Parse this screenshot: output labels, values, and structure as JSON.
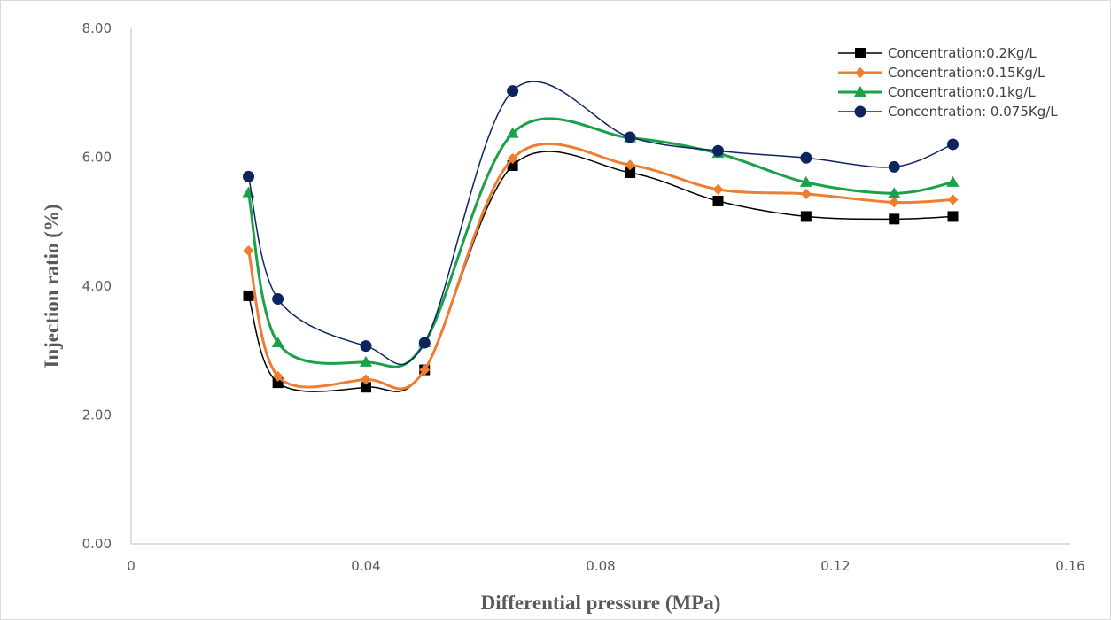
{
  "chart_data": {
    "type": "line",
    "title": "",
    "xlabel": "Differential pressure (MPa)",
    "ylabel": "Injection ratio (%)",
    "xlim": [
      0,
      0.16
    ],
    "ylim": [
      0,
      8
    ],
    "x_ticks": [
      "0",
      "0.04",
      "0.08",
      "0.12",
      "0.16"
    ],
    "y_ticks": [
      "0.00",
      "2.00",
      "4.00",
      "6.00",
      "8.00"
    ],
    "grid": false,
    "legend_position": "top-right",
    "x": [
      0.02,
      0.025,
      0.04,
      0.05,
      0.065,
      0.085,
      0.1,
      0.115,
      0.13,
      0.14
    ],
    "series": [
      {
        "name": "Concentration:0.2Kg/L",
        "color": "#000000",
        "marker": "square",
        "values": [
          3.85,
          2.5,
          2.43,
          2.7,
          5.87,
          5.76,
          5.32,
          5.08,
          5.04,
          5.08
        ]
      },
      {
        "name": "Concentration:0.15Kg/L",
        "color": "#ed7d31",
        "marker": "diamond",
        "values": [
          4.55,
          2.6,
          2.55,
          2.7,
          5.98,
          5.88,
          5.5,
          5.43,
          5.3,
          5.34
        ]
      },
      {
        "name": "Concentration:0.1kg/L",
        "color": "#1aa14a",
        "marker": "triangle",
        "values": [
          5.45,
          3.12,
          2.82,
          3.12,
          6.37,
          6.3,
          6.06,
          5.61,
          5.44,
          5.61
        ]
      },
      {
        "name": "Concentration: 0.075Kg/L",
        "color": "#0d2461",
        "marker": "circle",
        "values": [
          5.7,
          3.8,
          3.07,
          3.12,
          7.03,
          6.31,
          6.1,
          5.99,
          5.85,
          6.2
        ]
      }
    ]
  }
}
